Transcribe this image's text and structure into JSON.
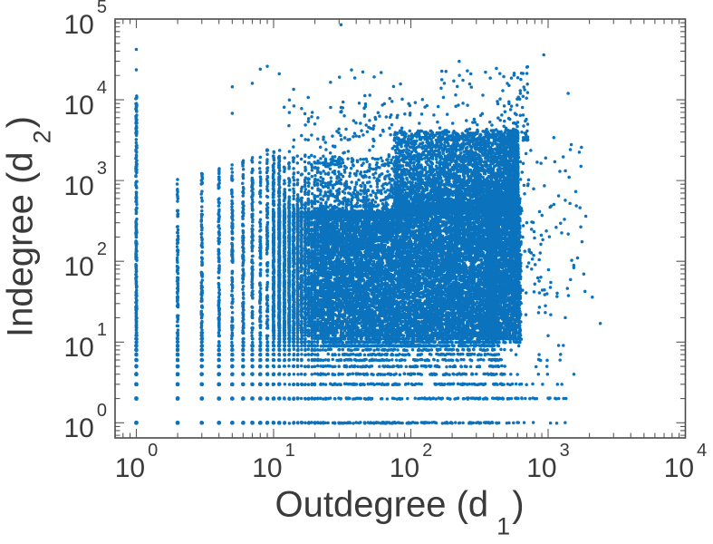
{
  "figure": {
    "background": "#ffffff"
  },
  "chart_data": {
    "type": "scatter",
    "title": "",
    "xlabel": {
      "prefix": "Outdegree (d",
      "sub": "1",
      "suffix": ")"
    },
    "ylabel": {
      "prefix": "Indegree (d",
      "sub": "2",
      "suffix": ")"
    },
    "x_scale": "log",
    "y_scale": "log",
    "xlim": [
      0.7,
      10000
    ],
    "ylim": [
      0.65,
      100000
    ],
    "grid": false,
    "legend": null,
    "box": true,
    "tick_direction": "in",
    "x_ticks": [
      {
        "base": "10",
        "exp": "0",
        "value": 1
      },
      {
        "base": "10",
        "exp": "1",
        "value": 10
      },
      {
        "base": "10",
        "exp": "2",
        "value": 100
      },
      {
        "base": "10",
        "exp": "3",
        "value": 1000
      },
      {
        "base": "10",
        "exp": "4",
        "value": 10000
      }
    ],
    "y_ticks": [
      {
        "base": "10",
        "exp": "0",
        "value": 1
      },
      {
        "base": "10",
        "exp": "1",
        "value": 10
      },
      {
        "base": "10",
        "exp": "2",
        "value": 100
      },
      {
        "base": "10",
        "exp": "3",
        "value": 1000
      },
      {
        "base": "10",
        "exp": "4",
        "value": 10000
      },
      {
        "base": "10",
        "exp": "5",
        "value": 100000
      }
    ],
    "minor_tick_multiples": [
      2,
      3,
      4,
      5,
      6,
      7,
      8,
      9
    ],
    "marker": {
      "color": "#0B72BD",
      "radius_px": 1.75
    },
    "frame_color": "#4a4a4a",
    "tick_color": "#5a5a5a",
    "text_color": "#3a3a3a",
    "point_cloud": {
      "description": "Log-log scatter of node outdegree vs indegree; degrees are integers so low-degree region forms a lattice of columns/rows. Components below regenerate the cloud deterministically.",
      "seed": 1337,
      "components": [
        {
          "kind": "column",
          "x": 1,
          "n": 430,
          "ly_max": 4.05,
          "bias": 1.45
        },
        {
          "kind": "column",
          "x": 2,
          "n": 260,
          "ly_max": 3.05,
          "bias": 1.55
        },
        {
          "kind": "column",
          "x": 3,
          "n": 250,
          "ly_max": 3.1,
          "bias": 1.55
        },
        {
          "kind": "column",
          "x": 4,
          "n": 240,
          "ly_max": 3.15,
          "bias": 1.55
        },
        {
          "kind": "column",
          "x": 5,
          "n": 230,
          "ly_max": 3.2,
          "bias": 1.6
        },
        {
          "kind": "column",
          "x": 6,
          "n": 230,
          "ly_max": 3.25,
          "bias": 1.6
        },
        {
          "kind": "column",
          "x": 7,
          "n": 225,
          "ly_max": 3.3,
          "bias": 1.6
        },
        {
          "kind": "column",
          "x": 8,
          "n": 220,
          "ly_max": 3.3,
          "bias": 1.6
        },
        {
          "kind": "column",
          "x": 9,
          "n": 215,
          "ly_max": 3.4,
          "bias": 1.65
        },
        {
          "kind": "column",
          "x": 10,
          "n": 210,
          "ly_max": 3.45,
          "bias": 1.65
        },
        {
          "kind": "column",
          "x": 11,
          "n": 205,
          "ly_max": 3.45,
          "bias": 1.65
        },
        {
          "kind": "row",
          "y": 1,
          "n": 430,
          "lx_max": 2.6,
          "bias": 2.0
        },
        {
          "kind": "row",
          "y": 2,
          "n": 410,
          "lx_max": 2.92,
          "bias": 2.2
        },
        {
          "kind": "row",
          "y": 3,
          "n": 390,
          "lx_max": 2.8,
          "bias": 2.1
        },
        {
          "kind": "row",
          "y": 4,
          "n": 370,
          "lx_max": 2.72,
          "bias": 2.0
        },
        {
          "kind": "row",
          "y": 5,
          "n": 360,
          "lx_max": 2.7,
          "bias": 2.0
        },
        {
          "kind": "row",
          "y": 6,
          "n": 350,
          "lx_max": 2.66,
          "bias": 1.95
        },
        {
          "kind": "row",
          "y": 7,
          "n": 345,
          "lx_max": 2.64,
          "bias": 1.9
        },
        {
          "kind": "row",
          "y": 8,
          "n": 340,
          "lx_max": 2.62,
          "bias": 1.9
        },
        {
          "kind": "row",
          "y": 9,
          "n": 335,
          "lx_max": 2.6,
          "bias": 1.9
        },
        {
          "kind": "box",
          "n": 12500,
          "lx": [
            1.0,
            2.62
          ],
          "ly": [
            0.95,
            2.62
          ]
        },
        {
          "kind": "box",
          "n": 2500,
          "lx": [
            2.55,
            2.8
          ],
          "ly": [
            1.0,
            2.78
          ]
        },
        {
          "kind": "box",
          "n": 5400,
          "lx": [
            1.88,
            2.78
          ],
          "bx": 1.6,
          "dx": "high",
          "ly": [
            2.6,
            3.62
          ],
          "by": 2.3
        },
        {
          "kind": "box",
          "n": 1300,
          "lx": [
            1.0,
            1.95
          ],
          "ly": [
            2.55,
            3.3
          ],
          "by": 2.4
        },
        {
          "kind": "box",
          "n": 230,
          "lx": [
            1.45,
            2.85
          ],
          "bx": 1.7,
          "dx": "high",
          "ly": [
            3.5,
            4.45
          ],
          "by": 1.9
        },
        {
          "kind": "box",
          "n": 90,
          "lx": [
            1.1,
            2.05
          ],
          "ly": [
            3.2,
            3.95
          ],
          "by": 1.7
        },
        {
          "kind": "box",
          "n": 140,
          "lx": [
            2.78,
            3.28
          ],
          "bx": 2.3,
          "ly": [
            1.3,
            3.45
          ]
        },
        {
          "kind": "box",
          "n": 70,
          "lx": [
            2.6,
            3.2
          ],
          "bx": 1.8,
          "ly": [
            0.0,
            1.08
          ]
        },
        {
          "kind": "box",
          "n": 18,
          "lx": [
            1.05,
            1.5
          ],
          "ly": [
            3.3,
            4.25
          ],
          "by": 1.5
        }
      ],
      "outlier_points": [
        [
          1,
          23500
        ],
        [
          1,
          42000
        ],
        [
          5,
          6800
        ],
        [
          5,
          14500
        ],
        [
          7,
          16000
        ],
        [
          8,
          24000
        ],
        [
          9,
          26000
        ],
        [
          11,
          21000
        ],
        [
          14,
          13500
        ],
        [
          26,
          16500
        ],
        [
          31,
          85000
        ],
        [
          225,
          30000
        ],
        [
          350,
          22000
        ],
        [
          930,
          36000
        ],
        [
          1400,
          12000
        ],
        [
          1100,
          3400
        ],
        [
          960,
          1900
        ],
        [
          2100,
          36
        ],
        [
          2400,
          17
        ],
        [
          1000,
          12
        ],
        [
          860,
          7
        ],
        [
          980,
          5
        ],
        [
          990,
          4
        ],
        [
          850,
          4
        ],
        [
          1170,
          3
        ],
        [
          1350,
          2
        ],
        [
          178,
          1
        ],
        [
          240,
          1
        ],
        [
          300,
          1
        ],
        [
          350,
          1
        ],
        [
          420,
          1
        ],
        [
          520,
          1
        ],
        [
          560,
          1
        ]
      ]
    }
  }
}
